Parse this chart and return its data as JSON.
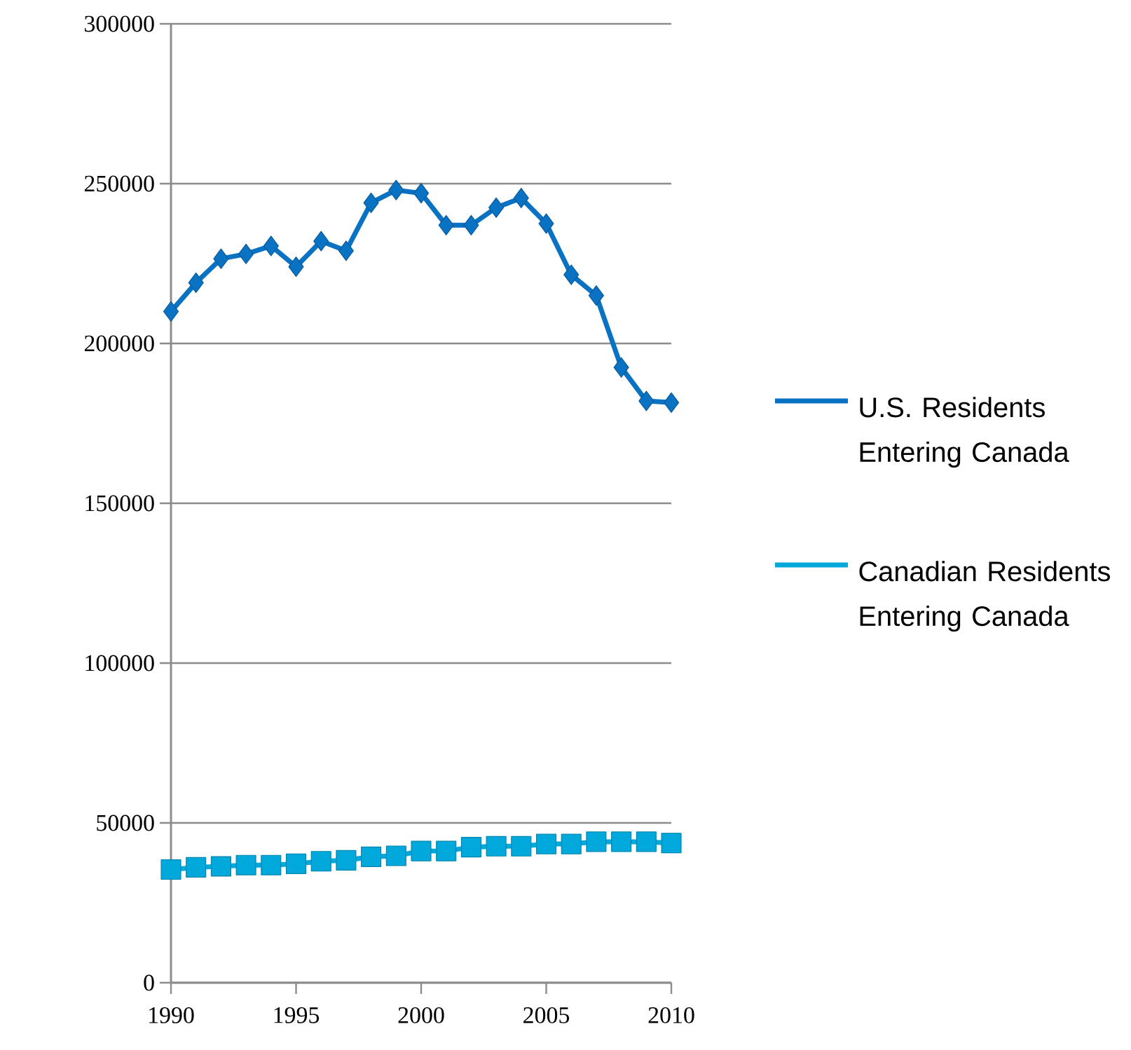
{
  "chart_data": {
    "type": "line",
    "x": [
      1990,
      1991,
      1992,
      1993,
      1994,
      1995,
      1996,
      1997,
      1998,
      1999,
      2000,
      2001,
      2002,
      2003,
      2004,
      2005,
      2006,
      2007,
      2008,
      2009,
      2010
    ],
    "series": [
      {
        "name": "U.S. Residents Entering Canada",
        "color": "#0a72c2",
        "marker": "diamond",
        "values": [
          210000,
          219000,
          226500,
          228000,
          230500,
          224000,
          232000,
          229000,
          244000,
          248000,
          247000,
          237000,
          237000,
          242500,
          245500,
          237500,
          221500,
          215000,
          192500,
          182000,
          181500
        ]
      },
      {
        "name": "Canadian Residents Entering Canada",
        "color": "#00a8dc",
        "marker": "square",
        "values": [
          35400,
          36100,
          36400,
          36800,
          36800,
          37200,
          38000,
          38300,
          39400,
          39700,
          41200,
          41200,
          42400,
          42700,
          42700,
          43400,
          43400,
          44100,
          44100,
          44100,
          43700
        ]
      }
    ],
    "xlim": [
      1990,
      2010
    ],
    "xticks": [
      1990,
      1995,
      2000,
      2005,
      2010
    ],
    "ylim": [
      0,
      300000
    ],
    "yticks": [
      0,
      50000,
      100000,
      150000,
      200000,
      250000,
      300000
    ],
    "grid": "y",
    "legend": "right",
    "line_style": "solid"
  }
}
